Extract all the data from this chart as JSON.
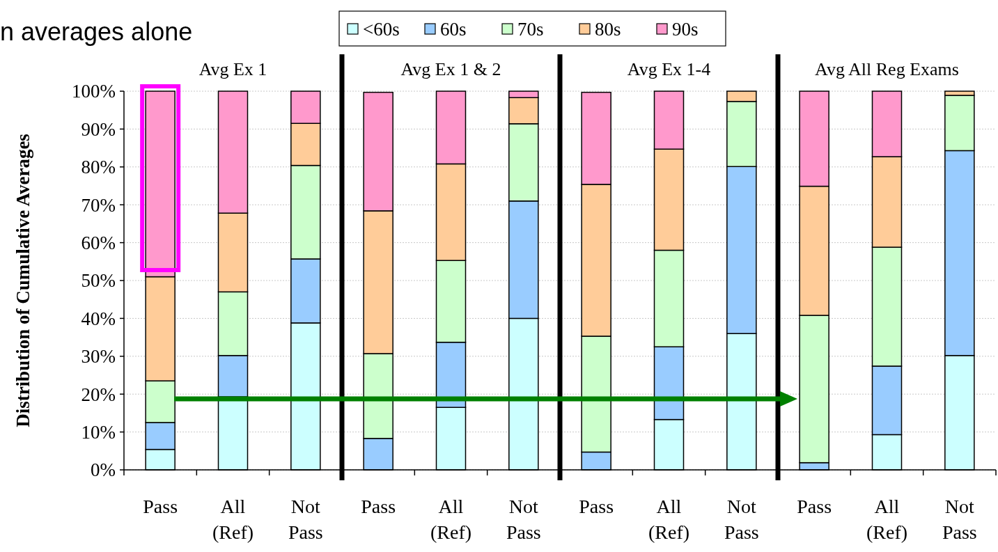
{
  "chart_data": {
    "type": "bar",
    "stacked": true,
    "title": "n averages alone",
    "ylabel": "Distribution of Cumulative Averages",
    "categories": [
      "Pass",
      "All (Ref)",
      "Not Pass",
      "Pass",
      "All (Ref)",
      "Not Pass",
      "Pass",
      "All (Ref)",
      "Not Pass",
      "Pass",
      "All (Ref)",
      "Not Pass"
    ],
    "annotations": [
      "Avg Ex 1",
      "Avg Ex 1 & 2",
      "Avg Ex 1-4",
      "Avg All Reg Exams"
    ],
    "series": [
      {
        "name": "<60s",
        "color": "#ccffff",
        "values": [
          5.4,
          19.3,
          38.8,
          null,
          16.5,
          40.0,
          null,
          13.3,
          36.0,
          0,
          9.3,
          30.2
        ]
      },
      {
        "name": "60s",
        "color": "#99ccff",
        "values": [
          7.1,
          10.9,
          16.9,
          8.3,
          17.2,
          31.0,
          4.7,
          19.2,
          44.1,
          1.9,
          18.1,
          54.1
        ]
      },
      {
        "name": "70s",
        "color": "#ccffcc",
        "values": [
          11.0,
          16.8,
          24.7,
          22.4,
          21.6,
          20.4,
          30.6,
          25.5,
          17.2,
          38.9,
          31.4,
          14.6
        ]
      },
      {
        "name": "80s",
        "color": "#ffcc99",
        "values": [
          27.5,
          20.8,
          11.1,
          37.7,
          25.5,
          6.9,
          40.1,
          26.7,
          2.7,
          34.1,
          23.9,
          1.1
        ]
      },
      {
        "name": "90s",
        "color": "#ff99cc",
        "values": [
          49.0,
          32.2,
          8.5,
          31.3,
          19.2,
          1.7,
          24.3,
          15.3,
          0,
          25.1,
          17.3,
          0
        ]
      }
    ],
    "ylim": [
      0,
      100
    ],
    "yticks": [
      {
        "value": 0,
        "label": "0%"
      },
      {
        "value": 10,
        "label": "10%"
      },
      {
        "value": 20,
        "label": "20%"
      },
      {
        "value": 30,
        "label": "30%"
      },
      {
        "value": 40,
        "label": "40%"
      },
      {
        "value": 50,
        "label": "50%"
      },
      {
        "value": 60,
        "label": "60%"
      },
      {
        "value": 70,
        "label": "70%"
      },
      {
        "value": 80,
        "label": "80%"
      },
      {
        "value": 90,
        "label": "90%"
      },
      {
        "value": 100,
        "label": "100%"
      }
    ],
    "grid": "y",
    "legend": "top"
  }
}
